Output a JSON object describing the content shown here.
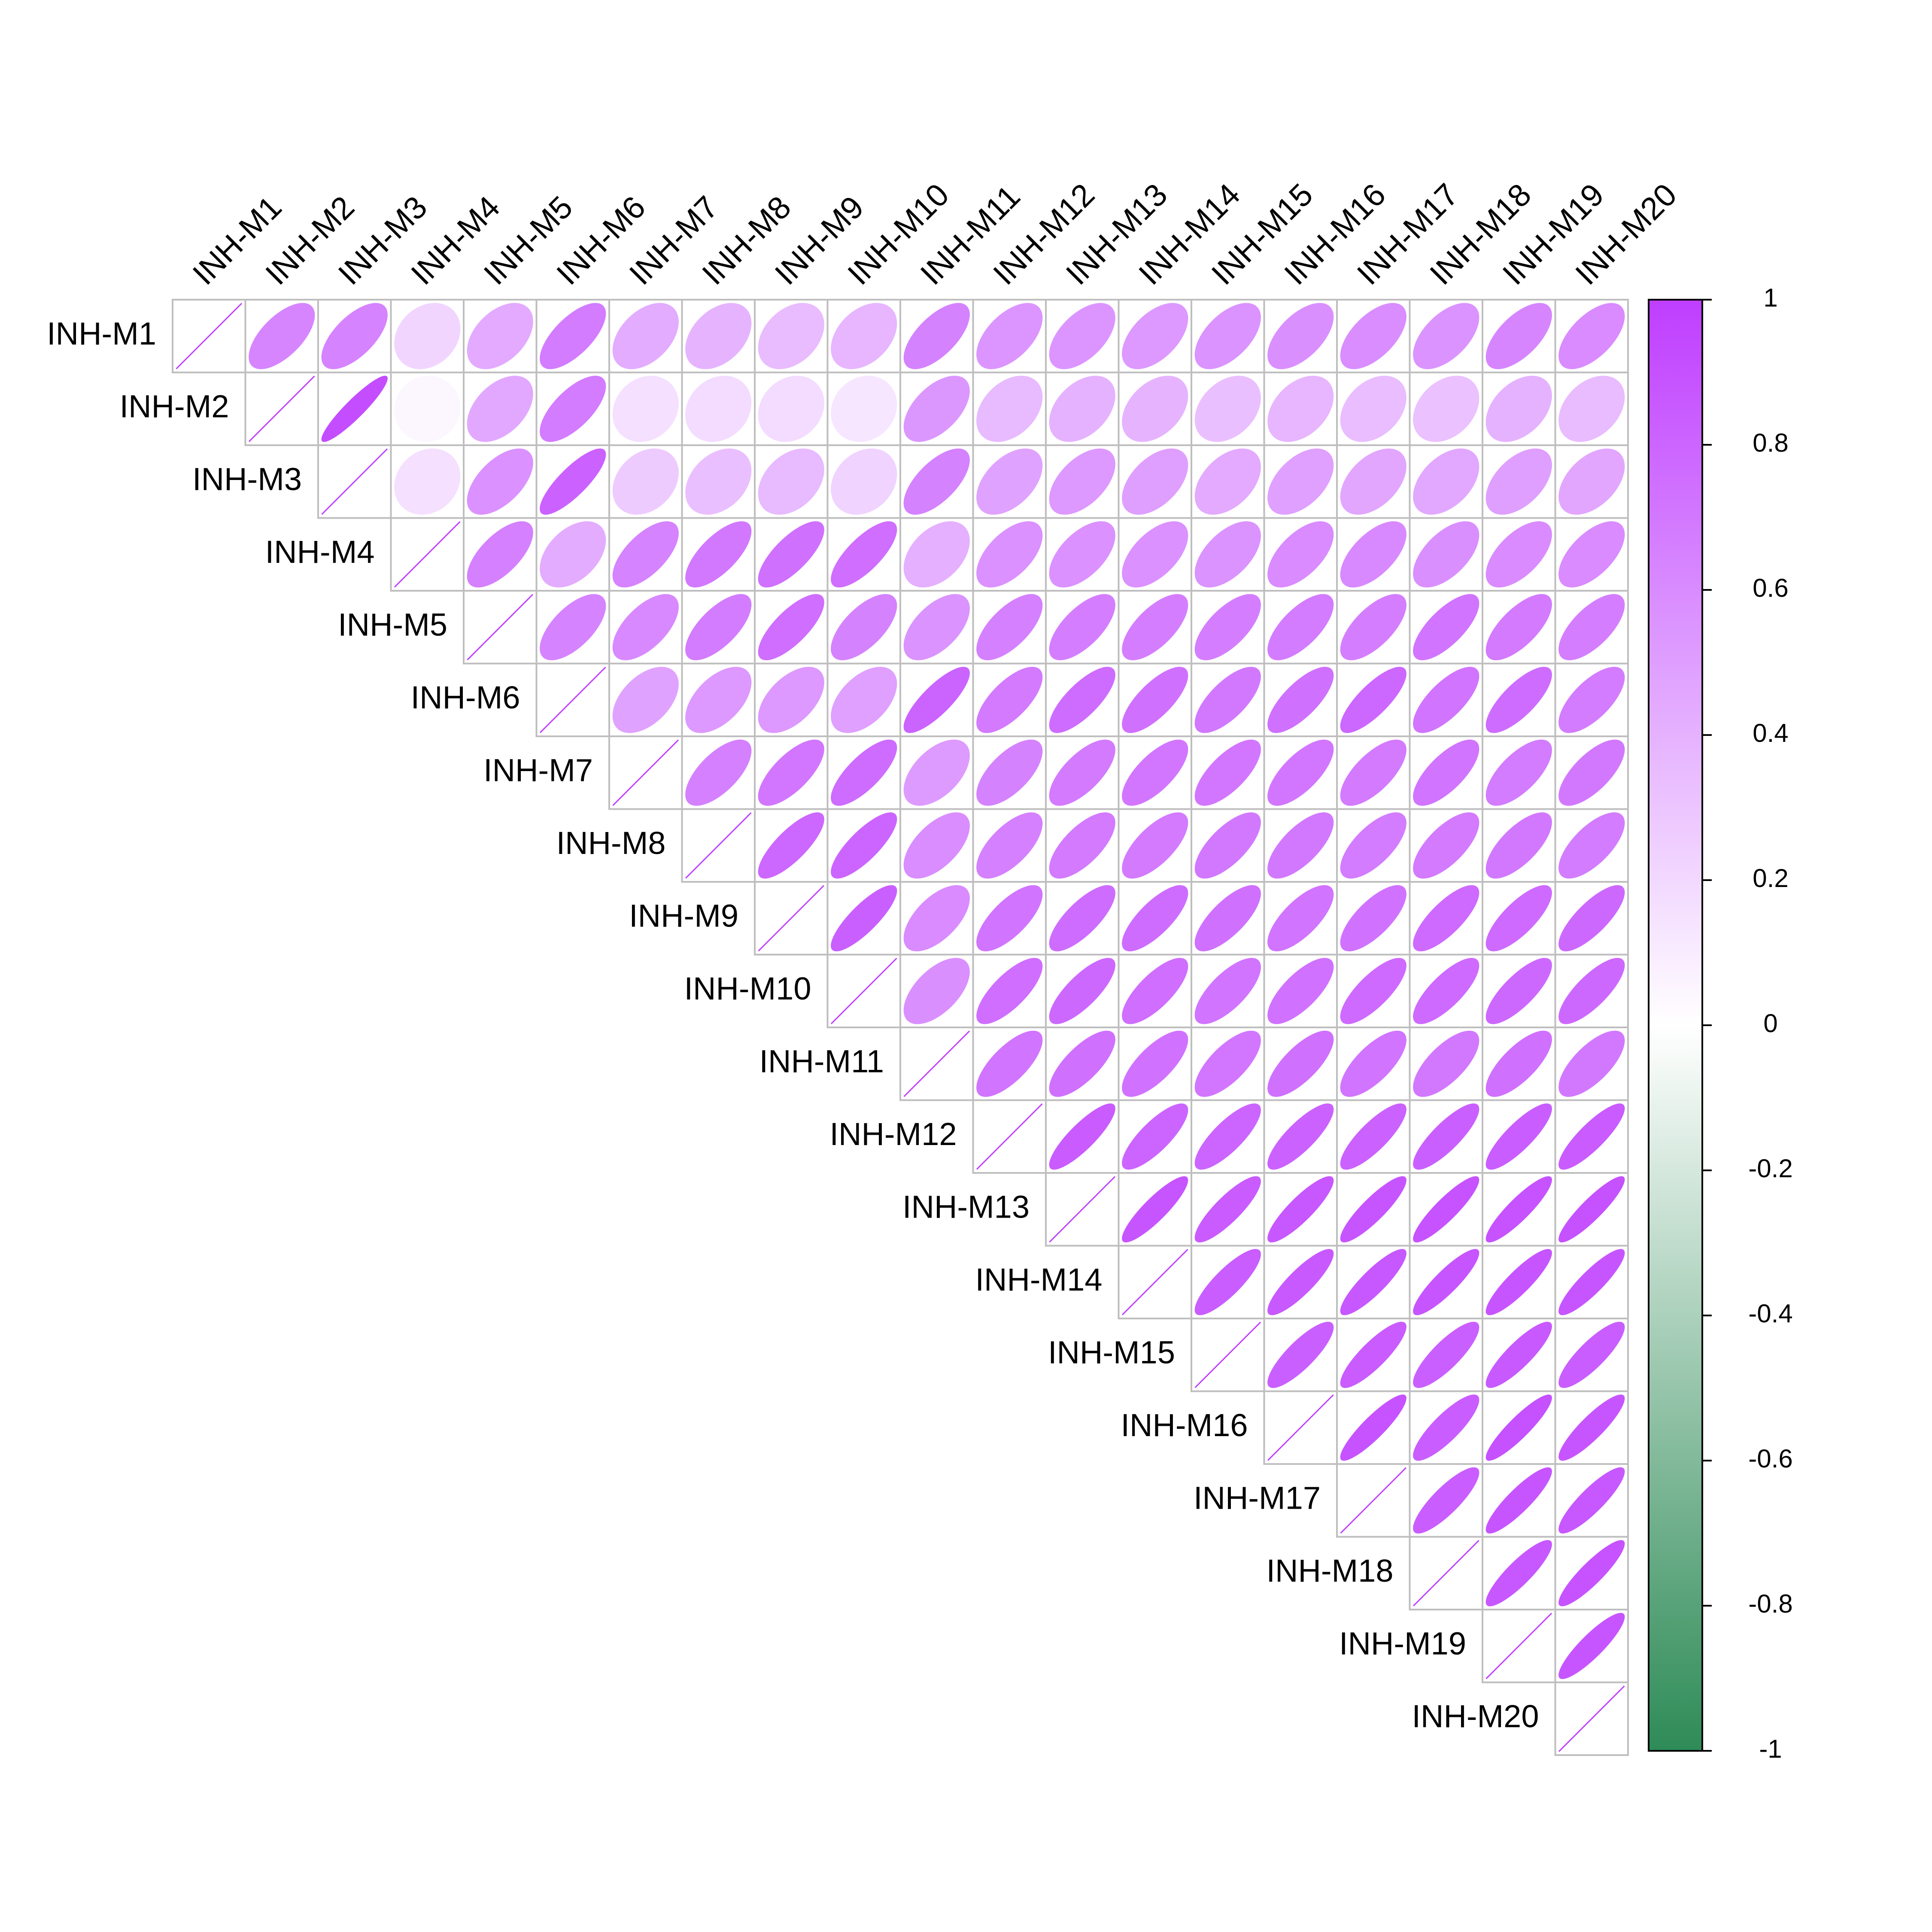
{
  "chart_data": {
    "type": "heatmap",
    "style": "correlation-ellipse",
    "layout": "upper-triangle",
    "variables": [
      "INH-M1",
      "INH-M2",
      "INH-M3",
      "INH-M4",
      "INH-M5",
      "INH-M6",
      "INH-M7",
      "INH-M8",
      "INH-M9",
      "INH-M10",
      "INH-M11",
      "INH-M12",
      "INH-M13",
      "INH-M14",
      "INH-M15",
      "INH-M16",
      "INH-M17",
      "INH-M18",
      "INH-M19",
      "INH-M20"
    ],
    "matrix": [
      [
        1.0,
        0.63,
        0.64,
        0.22,
        0.44,
        0.68,
        0.43,
        0.39,
        0.35,
        0.38,
        0.65,
        0.55,
        0.55,
        0.53,
        0.56,
        0.58,
        0.59,
        0.56,
        0.63,
        0.6
      ],
      [
        0.63,
        1.0,
        0.92,
        0.04,
        0.45,
        0.68,
        0.16,
        0.18,
        0.18,
        0.13,
        0.54,
        0.36,
        0.4,
        0.39,
        0.33,
        0.38,
        0.34,
        0.32,
        0.4,
        0.35
      ],
      [
        0.64,
        0.92,
        1.0,
        0.16,
        0.57,
        0.82,
        0.27,
        0.33,
        0.36,
        0.23,
        0.65,
        0.48,
        0.53,
        0.5,
        0.44,
        0.49,
        0.46,
        0.45,
        0.5,
        0.46
      ],
      [
        0.22,
        0.04,
        0.16,
        1.0,
        0.66,
        0.43,
        0.64,
        0.7,
        0.74,
        0.75,
        0.41,
        0.57,
        0.57,
        0.57,
        0.56,
        0.6,
        0.61,
        0.58,
        0.6,
        0.6
      ],
      [
        0.44,
        0.45,
        0.57,
        0.66,
        1.0,
        0.64,
        0.61,
        0.68,
        0.75,
        0.65,
        0.56,
        0.66,
        0.67,
        0.67,
        0.67,
        0.68,
        0.67,
        0.72,
        0.69,
        0.67
      ],
      [
        0.68,
        0.68,
        0.82,
        0.43,
        0.64,
        1.0,
        0.48,
        0.53,
        0.53,
        0.49,
        0.81,
        0.69,
        0.76,
        0.74,
        0.7,
        0.74,
        0.79,
        0.72,
        0.76,
        0.68
      ],
      [
        0.43,
        0.16,
        0.27,
        0.64,
        0.61,
        0.48,
        1.0,
        0.66,
        0.71,
        0.76,
        0.52,
        0.65,
        0.69,
        0.71,
        0.71,
        0.71,
        0.69,
        0.72,
        0.68,
        0.7
      ],
      [
        0.39,
        0.18,
        0.33,
        0.7,
        0.68,
        0.53,
        0.66,
        1.0,
        0.79,
        0.8,
        0.59,
        0.66,
        0.69,
        0.69,
        0.7,
        0.7,
        0.68,
        0.69,
        0.7,
        0.68
      ],
      [
        0.35,
        0.18,
        0.36,
        0.74,
        0.75,
        0.53,
        0.71,
        0.79,
        1.0,
        0.83,
        0.6,
        0.72,
        0.76,
        0.76,
        0.74,
        0.72,
        0.73,
        0.77,
        0.77,
        0.78
      ],
      [
        0.38,
        0.13,
        0.23,
        0.75,
        0.65,
        0.49,
        0.76,
        0.8,
        0.83,
        1.0,
        0.58,
        0.75,
        0.78,
        0.75,
        0.72,
        0.73,
        0.77,
        0.77,
        0.78,
        0.78
      ],
      [
        0.65,
        0.54,
        0.65,
        0.41,
        0.56,
        0.81,
        0.52,
        0.59,
        0.6,
        0.58,
        1.0,
        0.72,
        0.74,
        0.73,
        0.71,
        0.74,
        0.72,
        0.7,
        0.74,
        0.7
      ],
      [
        0.55,
        0.36,
        0.48,
        0.57,
        0.66,
        0.69,
        0.65,
        0.66,
        0.72,
        0.75,
        0.72,
        1.0,
        0.85,
        0.8,
        0.8,
        0.82,
        0.82,
        0.83,
        0.84,
        0.85
      ],
      [
        0.55,
        0.4,
        0.53,
        0.57,
        0.67,
        0.76,
        0.69,
        0.69,
        0.76,
        0.78,
        0.74,
        0.85,
        1.0,
        0.88,
        0.85,
        0.87,
        0.88,
        0.89,
        0.89,
        0.9
      ],
      [
        0.53,
        0.39,
        0.5,
        0.57,
        0.67,
        0.74,
        0.71,
        0.69,
        0.76,
        0.75,
        0.73,
        0.8,
        0.88,
        1.0,
        0.84,
        0.86,
        0.87,
        0.88,
        0.88,
        0.88
      ],
      [
        0.56,
        0.33,
        0.44,
        0.56,
        0.67,
        0.7,
        0.71,
        0.7,
        0.74,
        0.72,
        0.71,
        0.8,
        0.85,
        0.84,
        1.0,
        0.83,
        0.85,
        0.83,
        0.86,
        0.84
      ],
      [
        0.58,
        0.38,
        0.49,
        0.6,
        0.68,
        0.74,
        0.71,
        0.7,
        0.72,
        0.73,
        0.74,
        0.82,
        0.87,
        0.86,
        0.83,
        1.0,
        0.89,
        0.84,
        0.9,
        0.88
      ],
      [
        0.59,
        0.34,
        0.46,
        0.61,
        0.67,
        0.79,
        0.69,
        0.68,
        0.73,
        0.77,
        0.72,
        0.82,
        0.88,
        0.87,
        0.85,
        0.89,
        1.0,
        0.84,
        0.88,
        0.87
      ],
      [
        0.56,
        0.32,
        0.45,
        0.58,
        0.72,
        0.72,
        0.72,
        0.69,
        0.77,
        0.77,
        0.7,
        0.83,
        0.89,
        0.88,
        0.83,
        0.84,
        0.84,
        1.0,
        0.87,
        0.89
      ],
      [
        0.63,
        0.4,
        0.5,
        0.6,
        0.69,
        0.76,
        0.68,
        0.7,
        0.77,
        0.78,
        0.74,
        0.84,
        0.89,
        0.88,
        0.86,
        0.9,
        0.88,
        0.87,
        1.0,
        0.88
      ],
      [
        0.6,
        0.35,
        0.46,
        0.6,
        0.67,
        0.68,
        0.7,
        0.68,
        0.78,
        0.78,
        0.7,
        0.85,
        0.9,
        0.88,
        0.84,
        0.88,
        0.87,
        0.89,
        0.88,
        1.0
      ]
    ],
    "colorbar": {
      "range": [
        -1,
        1
      ],
      "ticks": [
        "1",
        "0.8",
        "0.6",
        "0.4",
        "0.2",
        "0",
        "-0.2",
        "-0.4",
        "-0.6",
        "-0.8",
        "-1"
      ],
      "tick_values": [
        1,
        0.8,
        0.6,
        0.4,
        0.2,
        0,
        -0.2,
        -0.4,
        -0.6,
        -0.8,
        -1
      ],
      "colors": {
        "negative": "#2e8b57",
        "neutral": "#ffffff",
        "positive": "#bf3eff"
      }
    },
    "grid_color": "#bebebe",
    "title": "",
    "xlabel": "",
    "ylabel": ""
  }
}
